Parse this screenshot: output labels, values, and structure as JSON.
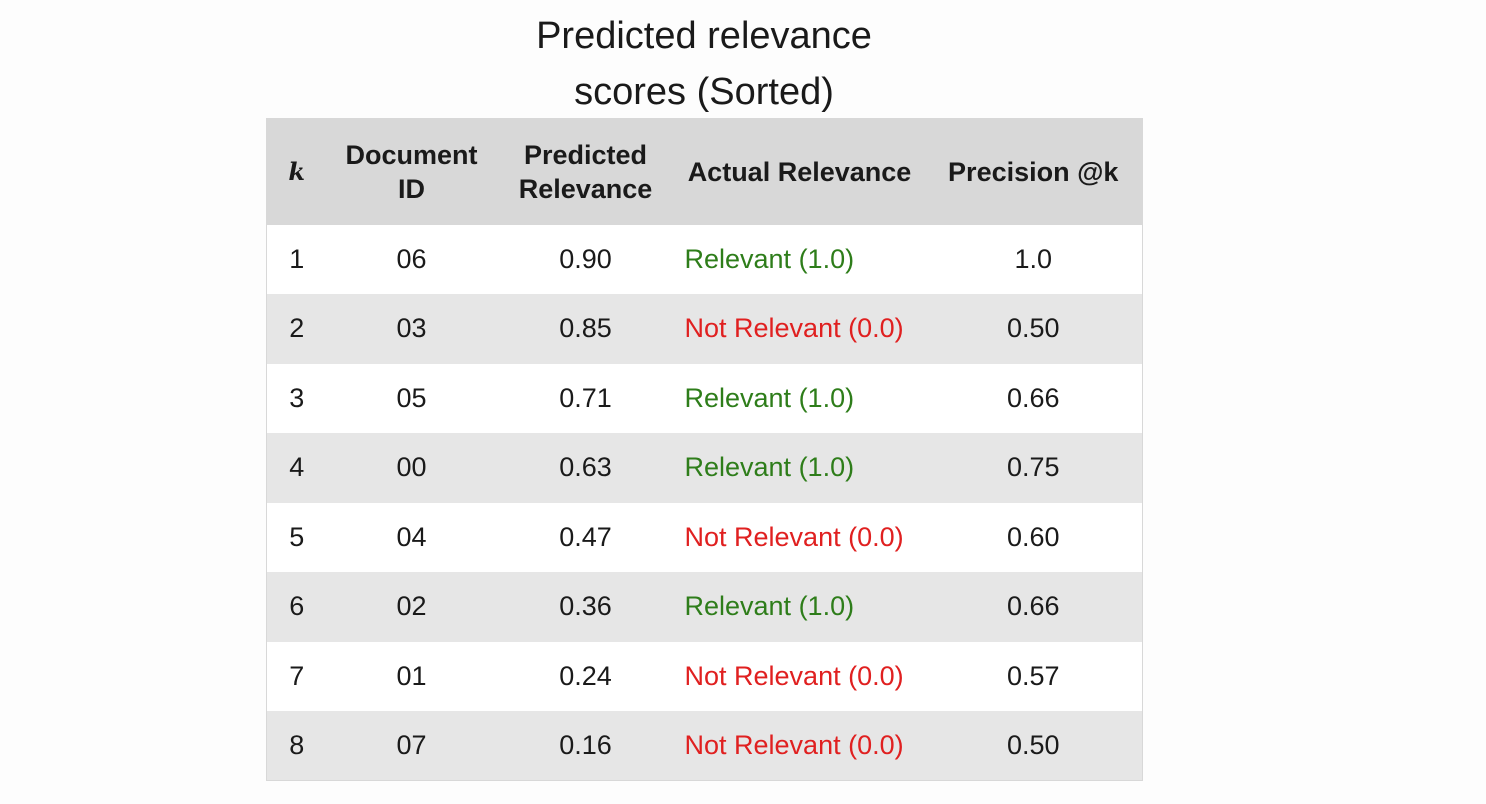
{
  "title": {
    "line1": "Predicted relevance",
    "line2": "scores (Sorted)"
  },
  "table": {
    "headers": {
      "k": "k",
      "document_id": "Document ID",
      "predicted_relevance": "Predicted Relevance",
      "actual_relevance": "Actual Relevance",
      "precision_at_k": "Precision @k"
    },
    "rows": [
      {
        "k": "1",
        "doc": "06",
        "pred": "0.90",
        "actual": "Relevant (1.0)",
        "relevant": true,
        "prec": "1.0"
      },
      {
        "k": "2",
        "doc": "03",
        "pred": "0.85",
        "actual": "Not Relevant (0.0)",
        "relevant": false,
        "prec": "0.50"
      },
      {
        "k": "3",
        "doc": "05",
        "pred": "0.71",
        "actual": "Relevant (1.0)",
        "relevant": true,
        "prec": "0.66"
      },
      {
        "k": "4",
        "doc": "00",
        "pred": "0.63",
        "actual": "Relevant (1.0)",
        "relevant": true,
        "prec": "0.75"
      },
      {
        "k": "5",
        "doc": "04",
        "pred": "0.47",
        "actual": "Not Relevant (0.0)",
        "relevant": false,
        "prec": "0.60"
      },
      {
        "k": "6",
        "doc": "02",
        "pred": "0.36",
        "actual": "Relevant (1.0)",
        "relevant": true,
        "prec": "0.66"
      },
      {
        "k": "7",
        "doc": "01",
        "pred": "0.24",
        "actual": "Not Relevant (0.0)",
        "relevant": false,
        "prec": "0.57"
      },
      {
        "k": "8",
        "doc": "07",
        "pred": "0.16",
        "actual": "Not Relevant (0.0)",
        "relevant": false,
        "prec": "0.50"
      }
    ]
  },
  "colors": {
    "relevant": "#2e7d1a",
    "not_relevant": "#e02020",
    "header_bg": "#d8d8d8",
    "stripe_bg": "#e6e6e6"
  }
}
